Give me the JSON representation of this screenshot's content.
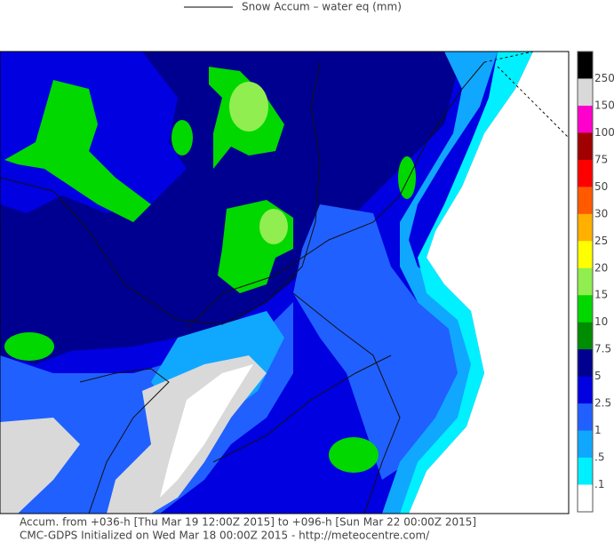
{
  "legend": {
    "label": "Snow Accum – water eq (mm)"
  },
  "colorbar": {
    "labels": [
      "250",
      "150",
      "100",
      "75",
      "50",
      "30",
      "25",
      "20",
      "15",
      "10",
      "7.5",
      "5",
      "2.5",
      "1",
      ".5",
      ".1"
    ],
    "colors": [
      "#000000",
      "#d9d9d9",
      "#ff00cc",
      "#a00000",
      "#ff0000",
      "#ff5a00",
      "#ffb000",
      "#ffff00",
      "#90ee50",
      "#00d800",
      "#008c00",
      "#000090",
      "#0000e0",
      "#2060ff",
      "#10a8ff",
      "#00f0ff",
      "#ffffff"
    ]
  },
  "footer": {
    "line1": "Accum. from +036-h [Thu Mar 19 12:00Z 2015] to +096-h [Sun Mar 22 00:00Z 2015]",
    "line2": "CMC-GDPS Initialized on Wed Mar 18 00:00Z 2015 - http://meteocentre.com/"
  }
}
